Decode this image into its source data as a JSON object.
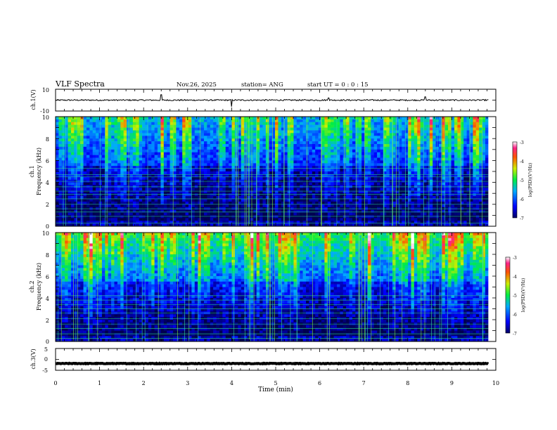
{
  "header": {
    "title": "VLF Spectra",
    "date": "Nov.26, 2025",
    "station": "station= ANG",
    "start": "start UT =  0 : 0 : 15"
  },
  "chart_data": [
    {
      "type": "line",
      "name": "ch1-waveform",
      "ylabel": "ch.1(V)",
      "xlim": [
        0,
        10
      ],
      "ylim": [
        -10,
        10
      ],
      "yticks": [
        "10",
        "-10"
      ],
      "baseline": 0,
      "noise": 0.6,
      "spikes": [
        {
          "x": 2.4,
          "y": 5
        },
        {
          "x": 4.0,
          "y": -6
        },
        {
          "x": 6.2,
          "y": 2
        },
        {
          "x": 8.4,
          "y": 3
        }
      ]
    },
    {
      "type": "heatmap",
      "name": "ch1-spectrogram",
      "ylabel": "Frequency (kHz)",
      "channel_label": "ch.1",
      "xlim": [
        0,
        10
      ],
      "ylim": [
        0,
        10
      ],
      "data_xmax": 9.83,
      "yticks": [
        "10",
        "8",
        "6",
        "4",
        "2",
        "0"
      ],
      "lines_khz": [
        0.3,
        0.9,
        1.3,
        1.6,
        2.0,
        2.5,
        2.9,
        3.2,
        3.6,
        4.1,
        4.5,
        4.7,
        5.3
      ],
      "colorbar": {
        "ticks": [
          "-3",
          "-4",
          "-5",
          "-6",
          "-7"
        ],
        "label": "log(PSD)(V²/Hz)",
        "range": [
          -7,
          -3
        ]
      }
    },
    {
      "type": "heatmap",
      "name": "ch2-spectrogram",
      "ylabel": "Frequency (kHz)",
      "channel_label": "ch.2",
      "xlim": [
        0,
        10
      ],
      "ylim": [
        0,
        10
      ],
      "data_xmax": 9.83,
      "yticks": [
        "10",
        "8",
        "6",
        "4",
        "2",
        "0"
      ],
      "lines_khz": [
        0.3,
        0.7,
        1.2,
        1.6,
        2.1,
        2.6,
        3.0,
        3.4,
        3.8,
        4.2
      ],
      "colorbar": {
        "ticks": [
          "-3",
          "-4",
          "-5",
          "-6",
          "-7"
        ],
        "label": "log(PSD)(V²/Hz)",
        "range": [
          -7,
          -3
        ]
      }
    },
    {
      "type": "line",
      "name": "ch3-waveform",
      "ylabel": "ch.3(V)",
      "xlabel": "Time (min)",
      "xlim": [
        0,
        10
      ],
      "ylim": [
        -5,
        5
      ],
      "yticks": [
        "5",
        "0",
        "-5"
      ],
      "xticks": [
        "0",
        "1",
        "2",
        "3",
        "4",
        "5",
        "6",
        "7",
        "8",
        "9",
        "10"
      ],
      "baseline": -1.9,
      "noise": 0.15
    }
  ]
}
